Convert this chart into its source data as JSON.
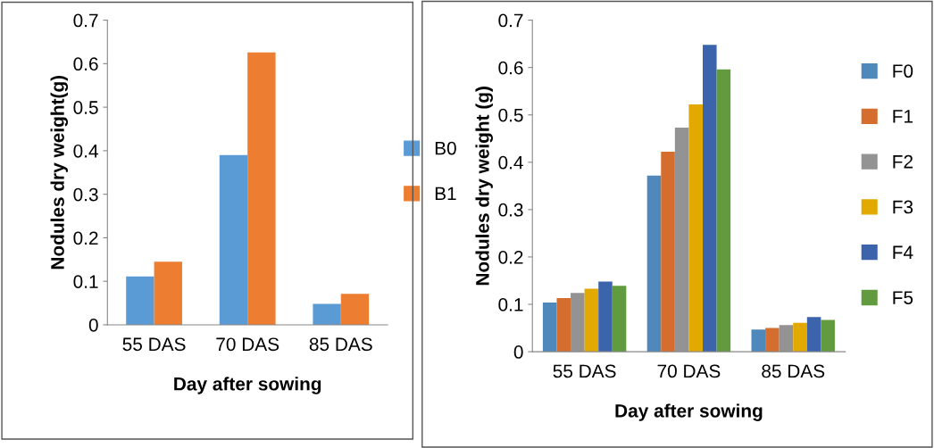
{
  "chart_data": [
    {
      "type": "bar",
      "xlabel": "Day after sowing",
      "ylabel": "Nodules dry weight(g)",
      "categories": [
        "55 DAS",
        "70 DAS",
        "85 DAS"
      ],
      "series": [
        {
          "name": "B0",
          "color": "#5b9bd5",
          "values": [
            0.111,
            0.39,
            0.048
          ]
        },
        {
          "name": "B1",
          "color": "#ed7d31",
          "values": [
            0.145,
            0.626,
            0.071
          ]
        }
      ],
      "ylim": [
        0,
        0.7
      ],
      "yticks": [
        0,
        0.1,
        0.2,
        0.3,
        0.4,
        0.5,
        0.6,
        0.7
      ],
      "grid": false,
      "legend": "right"
    },
    {
      "type": "bar",
      "xlabel": "Day after sowing",
      "ylabel": "Nodules dry weight (g)",
      "categories": [
        "55 DAS",
        "70 DAS",
        "85 DAS"
      ],
      "series": [
        {
          "name": "F0",
          "color": "#4f88bb",
          "values": [
            0.104,
            0.372,
            0.047
          ]
        },
        {
          "name": "F1",
          "color": "#d46d2d",
          "values": [
            0.113,
            0.422,
            0.05
          ]
        },
        {
          "name": "F2",
          "color": "#939393",
          "values": [
            0.124,
            0.473,
            0.056
          ]
        },
        {
          "name": "F3",
          "color": "#e2aa00",
          "values": [
            0.133,
            0.522,
            0.061
          ]
        },
        {
          "name": "F4",
          "color": "#3c64ad",
          "values": [
            0.148,
            0.648,
            0.073
          ]
        },
        {
          "name": "F5",
          "color": "#629b3f",
          "values": [
            0.139,
            0.596,
            0.067
          ]
        }
      ],
      "ylim": [
        0,
        0.7
      ],
      "yticks": [
        0,
        0.1,
        0.2,
        0.3,
        0.4,
        0.5,
        0.6,
        0.7
      ],
      "grid": false,
      "legend": "right"
    }
  ]
}
